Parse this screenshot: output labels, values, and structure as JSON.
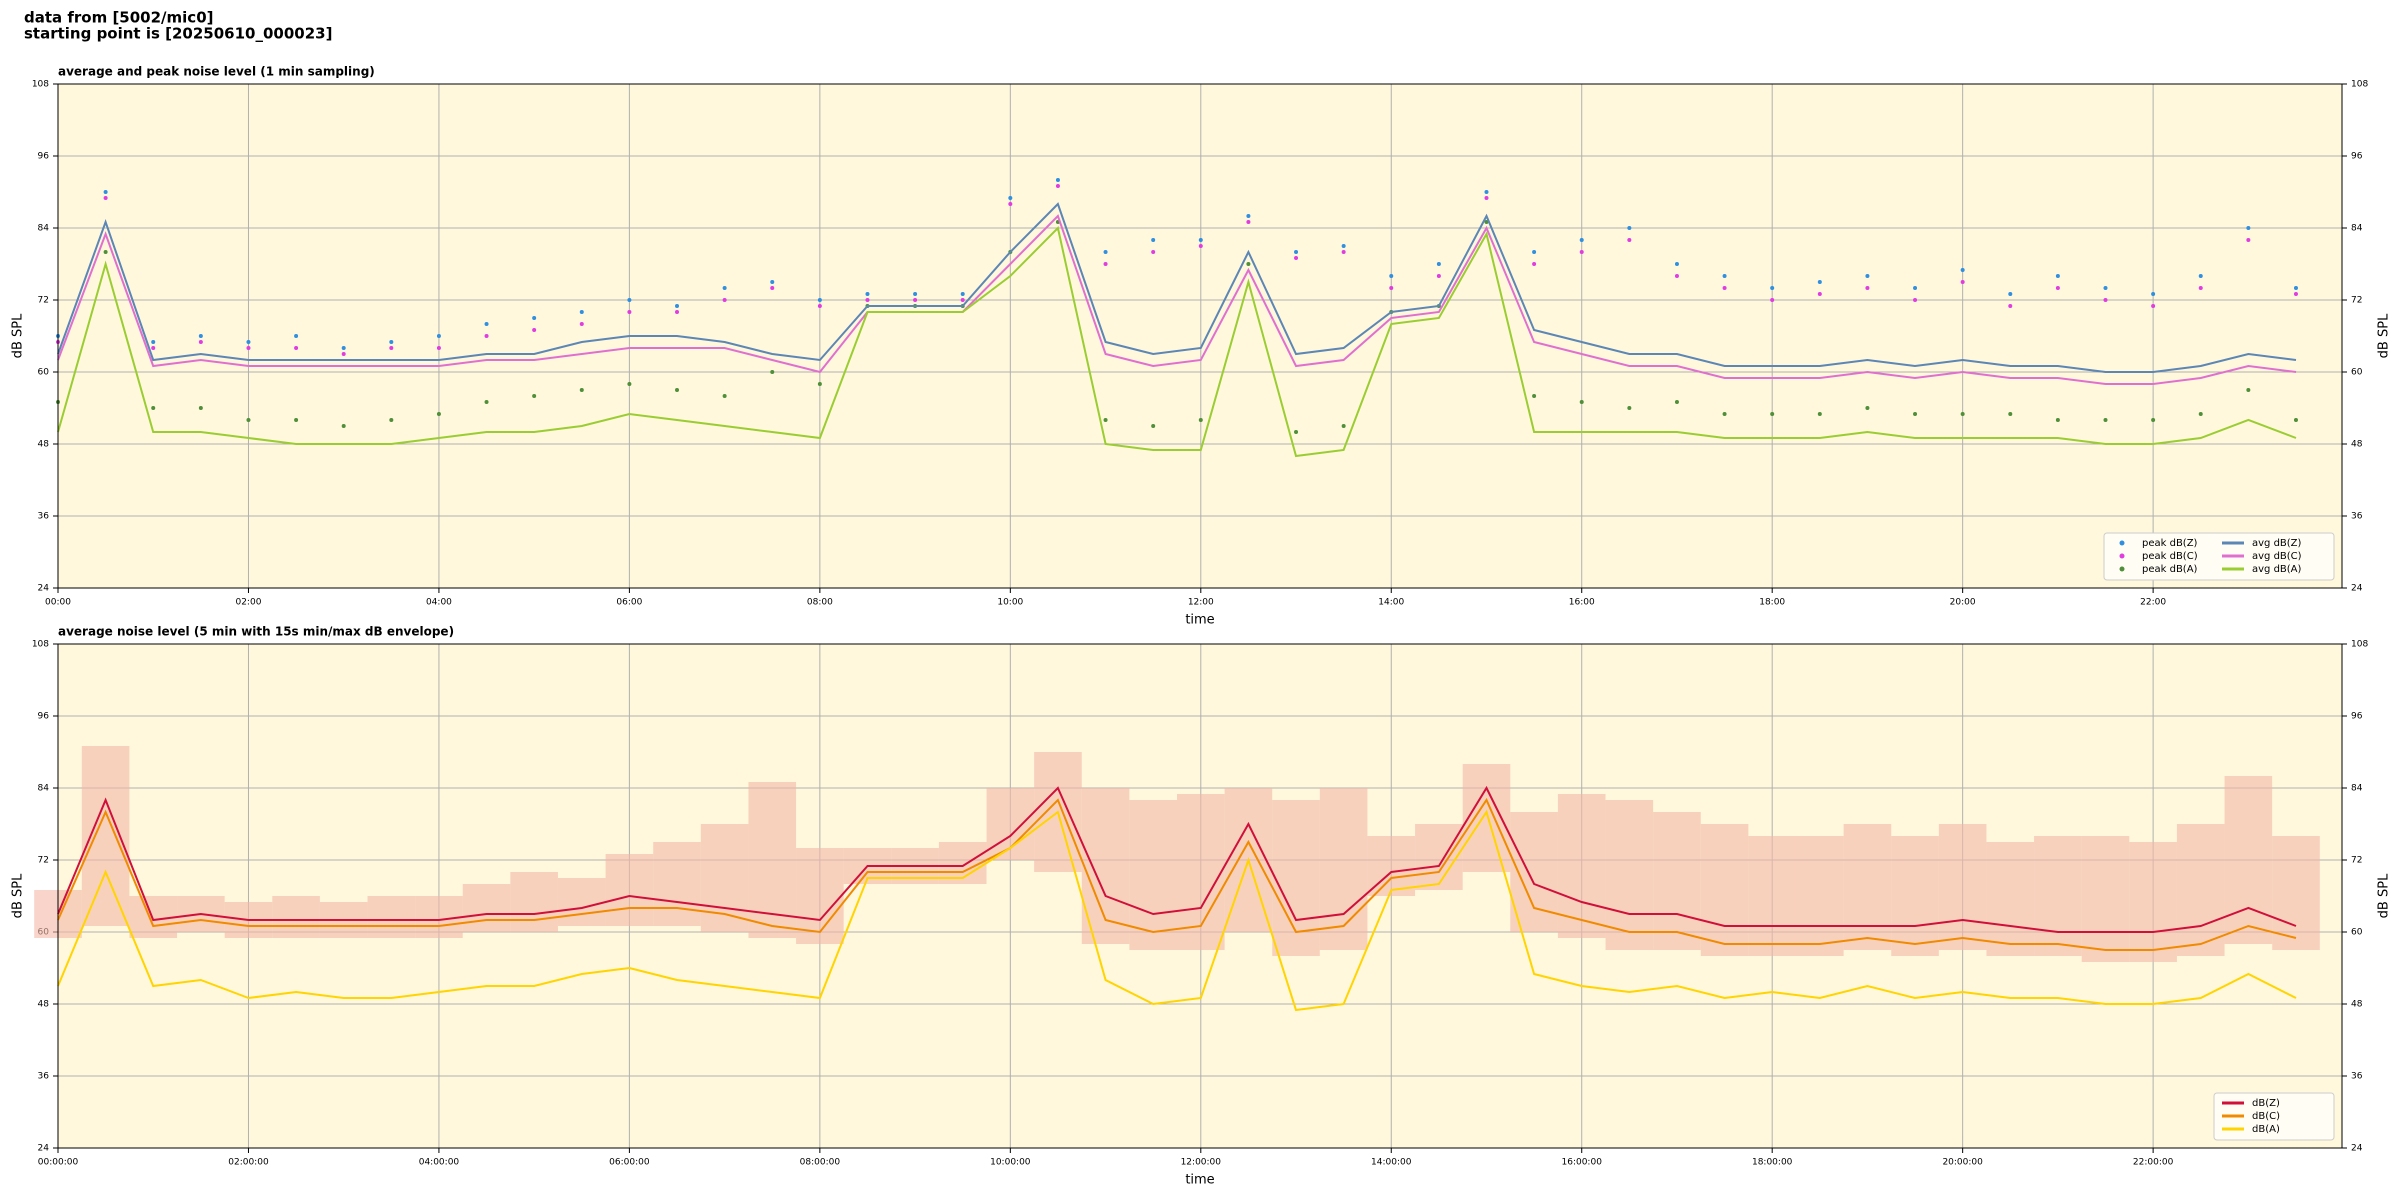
{
  "header": {
    "line1": "data from [5002/mic0]",
    "line2": "starting point is [20250610_000023]"
  },
  "chart_data": [
    {
      "type": "line",
      "title": "average and peak noise level (1 min sampling)",
      "x_label": "time",
      "y_label": "dB SPL",
      "y2_label": "dB SPL",
      "xlim": [
        0,
        1439
      ],
      "ylim": [
        24,
        108
      ],
      "grid": true,
      "legend": "lower right",
      "legend_columns": 2,
      "xticks": [
        {
          "value": 0,
          "label": "00:00"
        },
        {
          "value": 120,
          "label": "02:00"
        },
        {
          "value": 240,
          "label": "04:00"
        },
        {
          "value": 360,
          "label": "06:00"
        },
        {
          "value": 480,
          "label": "08:00"
        },
        {
          "value": 600,
          "label": "10:00"
        },
        {
          "value": 720,
          "label": "12:00"
        },
        {
          "value": 840,
          "label": "14:00"
        },
        {
          "value": 960,
          "label": "16:00"
        },
        {
          "value": 1080,
          "label": "18:00"
        },
        {
          "value": 1200,
          "label": "20:00"
        },
        {
          "value": 1320,
          "label": "22:00"
        }
      ],
      "yticks": [
        24,
        36,
        48,
        60,
        72,
        84,
        96,
        108
      ],
      "x": [
        0,
        30,
        60,
        90,
        120,
        150,
        180,
        210,
        240,
        270,
        300,
        330,
        360,
        390,
        420,
        450,
        480,
        510,
        540,
        570,
        600,
        630,
        660,
        690,
        720,
        750,
        780,
        810,
        840,
        870,
        900,
        930,
        960,
        990,
        1020,
        1050,
        1080,
        1110,
        1140,
        1170,
        1200,
        1230,
        1260,
        1290,
        1320,
        1350,
        1380,
        1410
      ],
      "series": [
        {
          "name": "peak dB(Z)",
          "mode": "markers",
          "color": "#2f8fe0",
          "values": [
            66,
            90,
            65,
            66,
            65,
            66,
            64,
            65,
            66,
            68,
            69,
            70,
            72,
            71,
            74,
            75,
            72,
            73,
            73,
            73,
            89,
            92,
            80,
            82,
            82,
            86,
            80,
            81,
            76,
            78,
            90,
            80,
            82,
            84,
            78,
            76,
            74,
            75,
            76,
            74,
            77,
            73,
            76,
            74,
            73,
            76,
            84,
            74
          ]
        },
        {
          "name": "peak dB(C)",
          "mode": "markers",
          "color": "#e03ce0",
          "values": [
            65,
            89,
            64,
            65,
            64,
            64,
            63,
            64,
            64,
            66,
            67,
            68,
            70,
            70,
            72,
            74,
            71,
            72,
            72,
            72,
            88,
            91,
            78,
            80,
            81,
            85,
            79,
            80,
            74,
            76,
            89,
            78,
            80,
            82,
            76,
            74,
            72,
            73,
            74,
            72,
            75,
            71,
            74,
            72,
            71,
            74,
            82,
            73
          ]
        },
        {
          "name": "peak dB(A)",
          "mode": "markers",
          "color": "#4f8f3a",
          "values": [
            55,
            80,
            54,
            54,
            52,
            52,
            51,
            52,
            53,
            55,
            56,
            57,
            58,
            57,
            56,
            60,
            58,
            71,
            71,
            71,
            80,
            85,
            52,
            51,
            52,
            78,
            50,
            51,
            70,
            71,
            85,
            56,
            55,
            54,
            55,
            53,
            53,
            53,
            54,
            53,
            53,
            53,
            52,
            52,
            52,
            53,
            57,
            52
          ]
        },
        {
          "name": "avg dB(Z)",
          "mode": "line",
          "color": "#5b86b5",
          "values": [
            63,
            85,
            62,
            63,
            62,
            62,
            62,
            62,
            62,
            63,
            63,
            65,
            66,
            66,
            65,
            63,
            62,
            71,
            71,
            71,
            80,
            88,
            65,
            63,
            64,
            80,
            63,
            64,
            70,
            71,
            86,
            67,
            65,
            63,
            63,
            61,
            61,
            61,
            62,
            61,
            62,
            61,
            61,
            60,
            60,
            61,
            63,
            62
          ]
        },
        {
          "name": "avg dB(C)",
          "mode": "line",
          "color": "#e070d0",
          "values": [
            62,
            83,
            61,
            62,
            61,
            61,
            61,
            61,
            61,
            62,
            62,
            63,
            64,
            64,
            64,
            62,
            60,
            70,
            70,
            70,
            78,
            86,
            63,
            61,
            62,
            77,
            61,
            62,
            69,
            70,
            84,
            65,
            63,
            61,
            61,
            59,
            59,
            59,
            60,
            59,
            60,
            59,
            59,
            58,
            58,
            59,
            61,
            60
          ]
        },
        {
          "name": "avg dB(A)",
          "mode": "line",
          "color": "#9acd32",
          "values": [
            50,
            78,
            50,
            50,
            49,
            48,
            48,
            48,
            49,
            50,
            50,
            51,
            53,
            52,
            51,
            50,
            49,
            70,
            70,
            70,
            76,
            84,
            48,
            47,
            47,
            75,
            46,
            47,
            68,
            69,
            83,
            50,
            50,
            50,
            50,
            49,
            49,
            49,
            50,
            49,
            49,
            49,
            49,
            48,
            48,
            49,
            52,
            49
          ]
        }
      ]
    },
    {
      "type": "line",
      "title": "average noise level (5 min with 15s min/max dB envelope)",
      "x_label": "time",
      "y_label": "dB SPL",
      "y2_label": "dB SPL",
      "xlim": [
        0,
        1439
      ],
      "ylim": [
        24,
        108
      ],
      "grid": true,
      "legend": "lower right",
      "legend_columns": 1,
      "xticks": [
        {
          "value": 0,
          "label": "00:00:00"
        },
        {
          "value": 120,
          "label": "02:00:00"
        },
        {
          "value": 240,
          "label": "04:00:00"
        },
        {
          "value": 360,
          "label": "06:00:00"
        },
        {
          "value": 480,
          "label": "08:00:00"
        },
        {
          "value": 600,
          "label": "10:00:00"
        },
        {
          "value": 720,
          "label": "12:00:00"
        },
        {
          "value": 840,
          "label": "14:00:00"
        },
        {
          "value": 960,
          "label": "16:00:00"
        },
        {
          "value": 1080,
          "label": "18:00:00"
        },
        {
          "value": 1200,
          "label": "20:00:00"
        },
        {
          "value": 1320,
          "label": "22:00:00"
        }
      ],
      "yticks": [
        24,
        36,
        48,
        60,
        72,
        84,
        96,
        108
      ],
      "x": [
        0,
        30,
        60,
        90,
        120,
        150,
        180,
        210,
        240,
        270,
        300,
        330,
        360,
        390,
        420,
        450,
        480,
        510,
        540,
        570,
        600,
        630,
        660,
        690,
        720,
        750,
        780,
        810,
        840,
        870,
        900,
        930,
        960,
        990,
        1020,
        1050,
        1080,
        1110,
        1140,
        1170,
        1200,
        1230,
        1260,
        1290,
        1320,
        1350,
        1380,
        1410
      ],
      "band": {
        "color": "#f4b8a8",
        "lower": [
          59,
          61,
          59,
          60,
          59,
          59,
          59,
          59,
          59,
          60,
          60,
          61,
          61,
          61,
          60,
          59,
          58,
          68,
          68,
          68,
          72,
          70,
          58,
          57,
          57,
          60,
          56,
          57,
          66,
          67,
          70,
          60,
          59,
          57,
          57,
          56,
          56,
          56,
          57,
          56,
          57,
          56,
          56,
          55,
          55,
          56,
          58,
          57
        ],
        "upper": [
          67,
          91,
          66,
          66,
          65,
          66,
          65,
          66,
          66,
          68,
          70,
          69,
          73,
          75,
          78,
          85,
          74,
          74,
          74,
          75,
          84,
          90,
          84,
          82,
          83,
          84,
          82,
          84,
          76,
          78,
          88,
          80,
          83,
          82,
          80,
          78,
          76,
          76,
          78,
          76,
          78,
          75,
          76,
          76,
          75,
          78,
          86,
          76
        ]
      },
      "series": [
        {
          "name": "dB(Z)",
          "mode": "line",
          "color": "#d0103a",
          "values": [
            63,
            82,
            62,
            63,
            62,
            62,
            62,
            62,
            62,
            63,
            63,
            64,
            66,
            65,
            64,
            63,
            62,
            71,
            71,
            71,
            76,
            84,
            66,
            63,
            64,
            78,
            62,
            63,
            70,
            71,
            84,
            68,
            65,
            63,
            63,
            61,
            61,
            61,
            61,
            61,
            62,
            61,
            60,
            60,
            60,
            61,
            64,
            61
          ]
        },
        {
          "name": "dB(C)",
          "mode": "line",
          "color": "#f08a00",
          "values": [
            62,
            80,
            61,
            62,
            61,
            61,
            61,
            61,
            61,
            62,
            62,
            63,
            64,
            64,
            63,
            61,
            60,
            70,
            70,
            70,
            74,
            82,
            62,
            60,
            61,
            75,
            60,
            61,
            69,
            70,
            82,
            64,
            62,
            60,
            60,
            58,
            58,
            58,
            59,
            58,
            59,
            58,
            58,
            57,
            57,
            58,
            61,
            59
          ]
        },
        {
          "name": "dB(A)",
          "mode": "line",
          "color": "#ffd400",
          "values": [
            51,
            70,
            51,
            52,
            49,
            50,
            49,
            49,
            50,
            51,
            51,
            53,
            54,
            52,
            51,
            50,
            49,
            69,
            69,
            69,
            74,
            80,
            52,
            48,
            49,
            72,
            47,
            48,
            67,
            68,
            80,
            53,
            51,
            50,
            51,
            49,
            50,
            49,
            51,
            49,
            50,
            49,
            49,
            48,
            48,
            49,
            53,
            49
          ]
        }
      ]
    }
  ]
}
